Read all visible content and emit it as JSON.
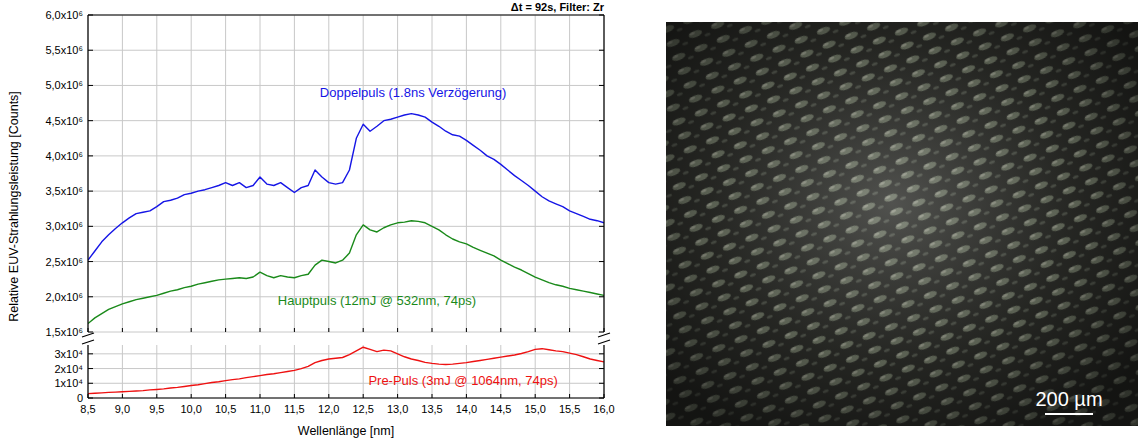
{
  "chart_data": [
    {
      "type": "line",
      "annotation": "Δt = 92s, Filter: Zr",
      "y_label": "Relative EUV-Strahlungsleistung [Counts]",
      "grid": true,
      "tick_labels": "y",
      "xlim": [
        8.5,
        16.0
      ],
      "xticks": [
        {
          "value": 8.5,
          "label": "8,5"
        },
        {
          "value": 9.0,
          "label": "9,0"
        },
        {
          "value": 9.5,
          "label": "9,5"
        },
        {
          "value": 10.0,
          "label": "10,0"
        },
        {
          "value": 10.5,
          "label": "10,5"
        },
        {
          "value": 11.0,
          "label": "11,0"
        },
        {
          "value": 11.5,
          "label": "11,5"
        },
        {
          "value": 12.0,
          "label": "12,0"
        },
        {
          "value": 12.5,
          "label": "12,5"
        },
        {
          "value": 13.0,
          "label": "13,0"
        },
        {
          "value": 13.5,
          "label": "13,5"
        },
        {
          "value": 14.0,
          "label": "14,0"
        },
        {
          "value": 14.5,
          "label": "14,5"
        },
        {
          "value": 15.0,
          "label": "15,0"
        },
        {
          "value": 15.5,
          "label": "15,5"
        },
        {
          "value": 16.0,
          "label": "16,0"
        }
      ],
      "ylim": [
        1500000,
        6000000
      ],
      "yticks": [
        {
          "value": 1500000,
          "label": "1,5x10⁶"
        },
        {
          "value": 2000000,
          "label": "2,0x10⁶"
        },
        {
          "value": 2500000,
          "label": "2,5x10⁶"
        },
        {
          "value": 3000000,
          "label": "3,0x10⁶"
        },
        {
          "value": 3500000,
          "label": "3,5x10⁶"
        },
        {
          "value": 4000000,
          "label": "4,0x10⁶"
        },
        {
          "value": 4500000,
          "label": "4,5x10⁶"
        },
        {
          "value": 5000000,
          "label": "5,0x10⁶"
        },
        {
          "value": 5500000,
          "label": "5,5x10⁶"
        },
        {
          "value": 6000000,
          "label": "6,0x10⁶"
        }
      ],
      "x": [
        8.5,
        8.6,
        8.7,
        8.8,
        8.9,
        9.0,
        9.1,
        9.2,
        9.3,
        9.4,
        9.5,
        9.6,
        9.7,
        9.8,
        9.9,
        10.0,
        10.1,
        10.2,
        10.3,
        10.4,
        10.5,
        10.6,
        10.7,
        10.8,
        10.9,
        11.0,
        11.1,
        11.2,
        11.3,
        11.4,
        11.5,
        11.6,
        11.7,
        11.8,
        11.9,
        12.0,
        12.1,
        12.2,
        12.3,
        12.4,
        12.5,
        12.6,
        12.7,
        12.8,
        12.9,
        13.0,
        13.1,
        13.2,
        13.3,
        13.4,
        13.5,
        13.6,
        13.7,
        13.8,
        13.9,
        14.0,
        14.1,
        14.2,
        14.3,
        14.4,
        14.5,
        14.6,
        14.7,
        14.8,
        14.9,
        15.0,
        15.1,
        15.2,
        15.3,
        15.4,
        15.5,
        15.6,
        15.7,
        15.8,
        15.9,
        16.0
      ],
      "series": [
        {
          "name": "Doppelpuls (1.8ns Verzögerung)",
          "color": "#1515e6",
          "values": [
            2520000,
            2650000,
            2780000,
            2880000,
            2970000,
            3050000,
            3120000,
            3180000,
            3200000,
            3220000,
            3280000,
            3350000,
            3370000,
            3400000,
            3450000,
            3470000,
            3500000,
            3520000,
            3550000,
            3580000,
            3620000,
            3580000,
            3620000,
            3550000,
            3580000,
            3700000,
            3600000,
            3580000,
            3620000,
            3550000,
            3480000,
            3550000,
            3580000,
            3800000,
            3700000,
            3620000,
            3600000,
            3620000,
            3800000,
            4250000,
            4450000,
            4350000,
            4420000,
            4500000,
            4520000,
            4550000,
            4580000,
            4600000,
            4580000,
            4550000,
            4480000,
            4420000,
            4350000,
            4300000,
            4280000,
            4220000,
            4150000,
            4080000,
            4000000,
            3950000,
            3880000,
            3800000,
            3720000,
            3650000,
            3580000,
            3500000,
            3420000,
            3360000,
            3320000,
            3280000,
            3220000,
            3180000,
            3140000,
            3100000,
            3080000,
            3050000
          ]
        },
        {
          "name": "Hauptpuls (12mJ @ 532nm, 74ps)",
          "color": "#1a8a1a",
          "values": [
            1620000,
            1700000,
            1760000,
            1820000,
            1860000,
            1900000,
            1930000,
            1960000,
            1980000,
            2000000,
            2020000,
            2050000,
            2080000,
            2100000,
            2130000,
            2150000,
            2180000,
            2200000,
            2220000,
            2240000,
            2250000,
            2260000,
            2270000,
            2260000,
            2280000,
            2350000,
            2300000,
            2270000,
            2300000,
            2280000,
            2270000,
            2300000,
            2320000,
            2450000,
            2520000,
            2500000,
            2480000,
            2520000,
            2620000,
            2880000,
            3020000,
            2950000,
            2920000,
            2980000,
            3020000,
            3050000,
            3060000,
            3080000,
            3070000,
            3050000,
            3000000,
            2950000,
            2880000,
            2820000,
            2780000,
            2750000,
            2700000,
            2660000,
            2620000,
            2580000,
            2520000,
            2470000,
            2420000,
            2380000,
            2330000,
            2280000,
            2240000,
            2200000,
            2170000,
            2150000,
            2120000,
            2100000,
            2080000,
            2060000,
            2040000,
            2020000
          ]
        }
      ]
    },
    {
      "type": "line",
      "x_label": "Wellenlänge [nm]",
      "grid": true,
      "xlim": [
        8.5,
        16.0
      ],
      "xticks": [
        {
          "value": 8.5,
          "label": "8,5"
        },
        {
          "value": 9.0,
          "label": "9,0"
        },
        {
          "value": 9.5,
          "label": "9,5"
        },
        {
          "value": 10.0,
          "label": "10,0"
        },
        {
          "value": 10.5,
          "label": "10,5"
        },
        {
          "value": 11.0,
          "label": "11,0"
        },
        {
          "value": 11.5,
          "label": "11,5"
        },
        {
          "value": 12.0,
          "label": "12,0"
        },
        {
          "value": 12.5,
          "label": "12,5"
        },
        {
          "value": 13.0,
          "label": "13,0"
        },
        {
          "value": 13.5,
          "label": "13,5"
        },
        {
          "value": 14.0,
          "label": "14,0"
        },
        {
          "value": 14.5,
          "label": "14,5"
        },
        {
          "value": 15.0,
          "label": "15,0"
        },
        {
          "value": 15.5,
          "label": "15,5"
        },
        {
          "value": 16.0,
          "label": "16,0"
        }
      ],
      "ylim": [
        0,
        36000
      ],
      "yticks": [
        0,
        {
          "value": 10000,
          "label": "1x10⁴"
        },
        {
          "value": 20000,
          "label": "2x10⁴"
        },
        {
          "value": 30000,
          "label": "3x10⁴"
        }
      ],
      "x": [
        8.5,
        8.6,
        8.7,
        8.8,
        8.9,
        9.0,
        9.1,
        9.2,
        9.3,
        9.4,
        9.5,
        9.6,
        9.7,
        9.8,
        9.9,
        10.0,
        10.1,
        10.2,
        10.3,
        10.4,
        10.5,
        10.6,
        10.7,
        10.8,
        10.9,
        11.0,
        11.1,
        11.2,
        11.3,
        11.4,
        11.5,
        11.6,
        11.7,
        11.8,
        11.9,
        12.0,
        12.1,
        12.2,
        12.3,
        12.4,
        12.5,
        12.6,
        12.7,
        12.8,
        12.9,
        13.0,
        13.1,
        13.2,
        13.3,
        13.4,
        13.5,
        13.6,
        13.7,
        13.8,
        13.9,
        14.0,
        14.1,
        14.2,
        14.3,
        14.4,
        14.5,
        14.6,
        14.7,
        14.8,
        14.9,
        15.0,
        15.1,
        15.2,
        15.3,
        15.4,
        15.5,
        15.6,
        15.7,
        15.8,
        15.9,
        16.0
      ],
      "series": [
        {
          "name": "Pre-Puls (3mJ @ 1064nm, 74ps)",
          "color": "#ee1111",
          "values": [
            3000,
            3200,
            3500,
            3800,
            4000,
            4200,
            4500,
            4800,
            5000,
            5500,
            5800,
            6200,
            6800,
            7200,
            7800,
            8500,
            9000,
            9800,
            10500,
            11000,
            11800,
            12500,
            13000,
            13800,
            14500,
            15200,
            16000,
            16500,
            17200,
            18000,
            18800,
            20000,
            21500,
            24000,
            25500,
            26500,
            27000,
            27500,
            29500,
            32000,
            34500,
            33000,
            31500,
            32500,
            32000,
            30000,
            28000,
            26500,
            25500,
            24200,
            23500,
            23000,
            22800,
            23000,
            23500,
            24000,
            24800,
            25500,
            26200,
            27000,
            27800,
            28500,
            29200,
            30200,
            31500,
            33000,
            33500,
            32800,
            32000,
            31500,
            30500,
            29500,
            28000,
            26500,
            25500,
            24500
          ]
        }
      ]
    }
  ],
  "image": {
    "scale_bar": "200 µm"
  }
}
